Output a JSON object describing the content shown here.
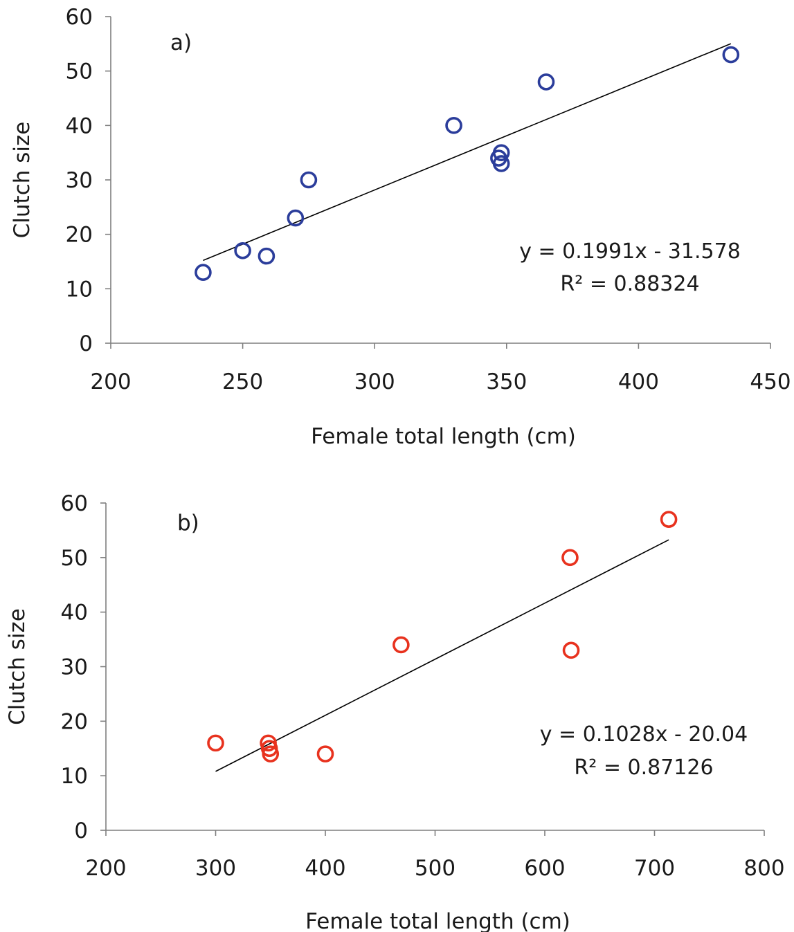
{
  "chart_data": [
    {
      "type": "scatter",
      "panel_label": "a)",
      "xlabel": "Female total length (cm)",
      "ylabel": "Clutch size",
      "xlim": [
        200,
        450
      ],
      "ylim": [
        0,
        60
      ],
      "xticks": [
        200,
        250,
        300,
        350,
        400,
        450
      ],
      "yticks": [
        0,
        10,
        20,
        30,
        40,
        50,
        60
      ],
      "marker_color": "#2b3d9b",
      "grid": false,
      "points": [
        {
          "x": 235,
          "y": 13
        },
        {
          "x": 250,
          "y": 17
        },
        {
          "x": 259,
          "y": 16
        },
        {
          "x": 270,
          "y": 23
        },
        {
          "x": 275,
          "y": 30
        },
        {
          "x": 330,
          "y": 40
        },
        {
          "x": 347,
          "y": 34
        },
        {
          "x": 348,
          "y": 33
        },
        {
          "x": 348,
          "y": 35
        },
        {
          "x": 365,
          "y": 48
        },
        {
          "x": 435,
          "y": 53
        }
      ],
      "trendline": {
        "slope": 0.1991,
        "intercept": -31.578,
        "x_range": [
          235,
          435
        ]
      },
      "equation": "y = 0.1991x - 31.578",
      "r_squared": "R² = 0.88324"
    },
    {
      "type": "scatter",
      "panel_label": "b)",
      "xlabel": "Female total length (cm)",
      "ylabel": "Clutch size",
      "xlim": [
        200,
        800
      ],
      "ylim": [
        0,
        60
      ],
      "xticks": [
        200,
        300,
        400,
        500,
        600,
        700,
        800
      ],
      "yticks": [
        0,
        10,
        20,
        30,
        40,
        50,
        60
      ],
      "marker_color": "#e8321e",
      "grid": false,
      "points": [
        {
          "x": 300,
          "y": 16
        },
        {
          "x": 348,
          "y": 16
        },
        {
          "x": 349,
          "y": 15
        },
        {
          "x": 350,
          "y": 14
        },
        {
          "x": 400,
          "y": 14
        },
        {
          "x": 469,
          "y": 34
        },
        {
          "x": 623,
          "y": 50
        },
        {
          "x": 624,
          "y": 33
        },
        {
          "x": 713,
          "y": 57
        }
      ],
      "trendline": {
        "slope": 0.1028,
        "intercept": -20.04,
        "x_range": [
          300,
          713
        ]
      },
      "equation": "y = 0.1028x - 20.04",
      "r_squared": "R² = 0.87126"
    }
  ]
}
